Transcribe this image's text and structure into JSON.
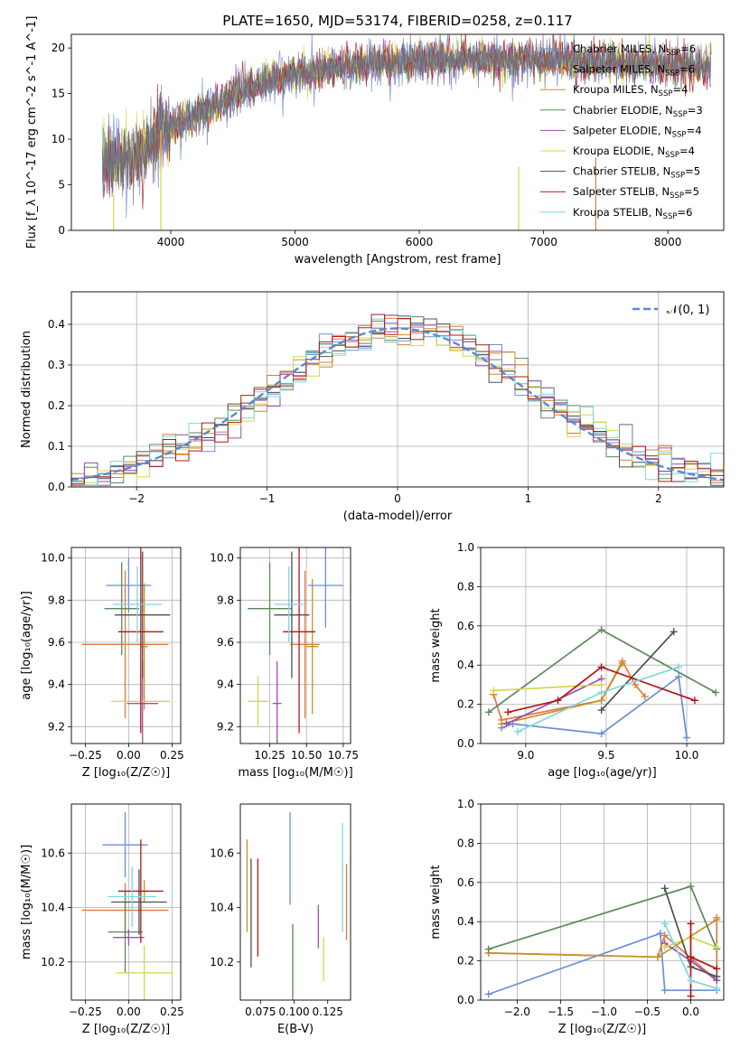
{
  "title": "PLATE=1650, MJD=53174, FIBERID=0258, z=0.117",
  "models": [
    {
      "label": "Chabrier MILES, N",
      "sub": "SSP",
      "suffix": "=6",
      "color": "#6a8fd6"
    },
    {
      "label": "Salpeter MILES, N",
      "sub": "SSP",
      "suffix": "=6",
      "color": "#e07a3f"
    },
    {
      "label": "Kroupa MILES, N",
      "sub": "SSP",
      "suffix": "=4",
      "color": "#c9902a"
    },
    {
      "label": "Chabrier ELODIE, N",
      "sub": "SSP",
      "suffix": "=3",
      "color": "#5a8a5a"
    },
    {
      "label": "Salpeter ELODIE, N",
      "sub": "SSP",
      "suffix": "=4",
      "color": "#9a4fb0"
    },
    {
      "label": "Kroupa ELODIE, N",
      "sub": "SSP",
      "suffix": "=4",
      "color": "#d4d84a"
    },
    {
      "label": "Chabrier STELIB, N",
      "sub": "SSP",
      "suffix": "=5",
      "color": "#505050"
    },
    {
      "label": "Salpeter STELIB, N",
      "sub": "SSP",
      "suffix": "=5",
      "color": "#b01818"
    },
    {
      "label": "Kroupa STELIB, N",
      "sub": "SSP",
      "suffix": "=6",
      "color": "#7fd6e0"
    }
  ],
  "chart_data": [
    {
      "id": "spectrum",
      "type": "line",
      "xlabel": "wavelength [Angstrom, rest frame]",
      "ylabel": "Flux [f_λ 10^-17 erg cm^-2 s^-1 A^-1]",
      "xlim": [
        3200,
        8450
      ],
      "ylim": [
        0,
        21.5
      ],
      "xticks": [
        4000,
        5000,
        6000,
        7000,
        8000
      ],
      "yticks": [
        0,
        5,
        10,
        15,
        20
      ],
      "grid": false,
      "legend": "right",
      "data_color": "#707070",
      "continuum": [
        [
          3450,
          7.5
        ],
        [
          3700,
          7.8
        ],
        [
          3950,
          11
        ],
        [
          4200,
          12.5
        ],
        [
          4600,
          15.5
        ],
        [
          5000,
          17.2
        ],
        [
          5500,
          18.2
        ],
        [
          6000,
          18.6
        ],
        [
          6500,
          18.8
        ],
        [
          7000,
          18.7
        ],
        [
          7400,
          18.5
        ],
        [
          8000,
          18.2
        ],
        [
          8350,
          18.0
        ]
      ]
    },
    {
      "id": "residuals",
      "type": "line",
      "xlabel": "(data-model)/error",
      "ylabel": "Normed distribution",
      "xlim": [
        -2.5,
        2.5
      ],
      "ylim": [
        0,
        0.48
      ],
      "xticks": [
        -2,
        -1,
        0,
        1,
        2
      ],
      "yticks": [
        0.0,
        0.1,
        0.2,
        0.3,
        0.4
      ],
      "grid": true,
      "legend": "top-right",
      "reference": {
        "name": "𝒩(0, 1)",
        "mu": 0,
        "sigma": 1,
        "peak": 0.39,
        "color": "#5b87d6"
      }
    },
    {
      "id": "age_vs_Z",
      "type": "scatter",
      "xlabel": "Z [log₁₀(Z/Z☉)]",
      "ylabel": "age  [log₁₀(age/yr)]",
      "xlim": [
        -0.33,
        0.3
      ],
      "ylim": [
        9.12,
        10.05
      ],
      "xticks": [
        -0.25,
        0.0,
        0.25
      ],
      "yticks": [
        9.2,
        9.4,
        9.6,
        9.8,
        10.0
      ],
      "grid": true,
      "points": [
        {
          "x": 0.0,
          "xerr": 0.13,
          "y": 9.87,
          "yerr": 0.13
        },
        {
          "x": -0.02,
          "xerr": 0.25,
          "y": 9.59,
          "yerr": 0.35
        },
        {
          "x": 0.09,
          "xerr": 0.02,
          "y": 9.58,
          "yerr": 0.3
        },
        {
          "x": -0.04,
          "xerr": 0.1,
          "y": 9.76,
          "yerr": 0.22
        },
        {
          "x": 0.08,
          "xerr": 0.09,
          "y": 9.31,
          "yerr": 0.2
        },
        {
          "x": 0.07,
          "xerr": 0.17,
          "y": 9.32,
          "yerr": 0.15
        },
        {
          "x": 0.08,
          "xerr": 0.16,
          "y": 9.73,
          "yerr": 0.3
        },
        {
          "x": 0.07,
          "xerr": 0.13,
          "y": 9.65,
          "yerr": 0.48
        },
        {
          "x": 0.05,
          "xerr": 0.14,
          "y": 9.78,
          "yerr": 0.18
        }
      ]
    },
    {
      "id": "age_vs_mass",
      "type": "scatter",
      "xlabel": "mass [log₁₀(M/M☉)]",
      "ylabel": "",
      "xlim": [
        10.05,
        10.8
      ],
      "ylim": [
        9.12,
        10.05
      ],
      "xticks": [
        10.25,
        10.5,
        10.75
      ],
      "yticks": [
        9.2,
        9.4,
        9.6,
        9.8,
        10.0
      ],
      "grid": true,
      "points": [
        {
          "x": 10.63,
          "xerr": 0.12,
          "y": 9.87,
          "yerr": 0.2
        },
        {
          "x": 10.49,
          "xerr": 0.1,
          "y": 9.59,
          "yerr": 0.35
        },
        {
          "x": 10.54,
          "xerr": 0.04,
          "y": 9.58,
          "yerr": 0.32
        },
        {
          "x": 10.25,
          "xerr": 0.15,
          "y": 9.76,
          "yerr": 0.22
        },
        {
          "x": 10.3,
          "xerr": 0.03,
          "y": 9.31,
          "yerr": 0.2
        },
        {
          "x": 10.17,
          "xerr": 0.07,
          "y": 9.32,
          "yerr": 0.12
        },
        {
          "x": 10.4,
          "xerr": 0.12,
          "y": 9.73,
          "yerr": 0.3
        },
        {
          "x": 10.45,
          "xerr": 0.11,
          "y": 9.65,
          "yerr": 0.48
        },
        {
          "x": 10.38,
          "xerr": 0.1,
          "y": 9.78,
          "yerr": 0.18
        }
      ]
    },
    {
      "id": "weight_vs_age",
      "type": "line",
      "xlabel": "age  [log₁₀(age/yr)]",
      "ylabel": "mass weight",
      "xlim": [
        8.72,
        10.23
      ],
      "ylim": [
        0,
        1.0
      ],
      "xticks": [
        9.0,
        9.5,
        10.0
      ],
      "yticks": [
        0.0,
        0.2,
        0.4,
        0.6,
        0.8,
        1.0
      ],
      "grid": true,
      "series": [
        [
          [
            8.85,
            0.08
          ],
          [
            8.92,
            0.1
          ],
          [
            9.47,
            0.05
          ],
          [
            9.95,
            0.34
          ],
          [
            10.0,
            0.03
          ]
        ],
        [
          [
            8.8,
            0.25
          ],
          [
            8.85,
            0.12
          ],
          [
            9.47,
            0.22
          ],
          [
            9.6,
            0.42
          ],
          [
            9.68,
            0.3
          ],
          [
            9.74,
            0.24
          ]
        ],
        [
          [
            8.85,
            0.1
          ],
          [
            9.47,
            0.22
          ],
          [
            9.6,
            0.41
          ]
        ],
        [
          [
            8.77,
            0.16
          ],
          [
            9.47,
            0.58
          ],
          [
            10.18,
            0.26
          ]
        ],
        [
          [
            8.88,
            0.1
          ],
          [
            9.47,
            0.33
          ]
        ],
        [
          [
            8.8,
            0.27
          ],
          [
            9.47,
            0.3
          ]
        ],
        [
          [
            9.47,
            0.17
          ],
          [
            9.92,
            0.57
          ]
        ],
        [
          [
            8.89,
            0.16
          ],
          [
            9.2,
            0.22
          ],
          [
            9.47,
            0.39
          ],
          [
            10.05,
            0.22
          ]
        ],
        [
          [
            8.95,
            0.06
          ],
          [
            9.47,
            0.26
          ],
          [
            9.95,
            0.39
          ]
        ]
      ]
    },
    {
      "id": "mass_vs_Z",
      "type": "scatter",
      "xlabel": "Z [log₁₀(Z/Z☉)]",
      "ylabel": "mass [log₁₀(M/M☉)]",
      "xlim": [
        -0.33,
        0.3
      ],
      "ylim": [
        10.06,
        10.78
      ],
      "xticks": [
        -0.25,
        0.0,
        0.25
      ],
      "yticks": [
        10.2,
        10.4,
        10.6
      ],
      "grid": true,
      "points": [
        {
          "x": -0.02,
          "xerr": 0.13,
          "y": 10.63,
          "yerr": 0.12
        },
        {
          "x": -0.02,
          "xerr": 0.25,
          "y": 10.39,
          "yerr": 0.1
        },
        {
          "x": 0.09,
          "xerr": 0.02,
          "y": 10.46,
          "yerr": 0.04
        },
        {
          "x": -0.02,
          "xerr": 0.1,
          "y": 10.31,
          "yerr": 0.15
        },
        {
          "x": 0.0,
          "xerr": 0.09,
          "y": 10.29,
          "yerr": 0.03
        },
        {
          "x": 0.09,
          "xerr": 0.16,
          "y": 10.16,
          "yerr": 0.1
        },
        {
          "x": 0.06,
          "xerr": 0.16,
          "y": 10.42,
          "yerr": 0.12
        },
        {
          "x": 0.07,
          "xerr": 0.13,
          "y": 10.46,
          "yerr": 0.19
        },
        {
          "x": 0.02,
          "xerr": 0.14,
          "y": 10.44,
          "yerr": 0.11
        }
      ]
    },
    {
      "id": "mass_vs_ebv",
      "type": "scatter",
      "xlabel": "E(B-V)",
      "ylabel": "",
      "xlim": [
        0.06,
        0.142
      ],
      "ylim": [
        10.06,
        10.78
      ],
      "xticks": [
        0.075,
        0.1,
        0.125
      ],
      "yticks": [
        10.2,
        10.4,
        10.6
      ],
      "grid": false,
      "points": [
        {
          "x": 0.097,
          "y": 10.58,
          "yerr": 0.17
        },
        {
          "x": 0.139,
          "y": 10.42,
          "yerr": 0.14
        },
        {
          "x": 0.065,
          "y": 10.48,
          "yerr": 0.17
        },
        {
          "x": 0.099,
          "y": 10.2,
          "yerr": 0.14
        },
        {
          "x": 0.118,
          "y": 10.33,
          "yerr": 0.08
        },
        {
          "x": 0.122,
          "y": 10.21,
          "yerr": 0.08
        },
        {
          "x": 0.068,
          "y": 10.38,
          "yerr": 0.2
        },
        {
          "x": 0.073,
          "y": 10.4,
          "yerr": 0.18
        },
        {
          "x": 0.136,
          "y": 10.51,
          "yerr": 0.2
        }
      ]
    },
    {
      "id": "weight_vs_Z",
      "type": "line",
      "xlabel": "Z [log₁₀(Z/Z☉)]",
      "ylabel": "mass weight",
      "xlim": [
        -2.42,
        0.38
      ],
      "ylim": [
        0,
        1.0
      ],
      "xticks": [
        -2.0,
        -1.5,
        -1.0,
        -0.5,
        0.0
      ],
      "yticks": [
        0.0,
        0.2,
        0.4,
        0.6,
        0.8,
        1.0
      ],
      "grid": true,
      "series": [
        [
          [
            -2.33,
            0.03
          ],
          [
            -0.35,
            0.34
          ],
          [
            -0.3,
            0.05
          ],
          [
            0.3,
            0.05
          ]
        ],
        [
          [
            -2.33,
            0.24
          ],
          [
            -0.38,
            0.22
          ],
          [
            -0.3,
            0.33
          ],
          [
            0.3,
            0.1
          ],
          [
            0.3,
            0.42
          ]
        ],
        [
          [
            -2.33,
            0.24
          ],
          [
            -0.38,
            0.22
          ],
          [
            0.3,
            0.41
          ]
        ],
        [
          [
            -2.33,
            0.26
          ],
          [
            0.0,
            0.58
          ],
          [
            0.3,
            0.26
          ]
        ],
        [
          [
            -0.3,
            0.29
          ],
          [
            0.0,
            0.2
          ],
          [
            0.3,
            0.1
          ]
        ],
        [
          [
            -0.3,
            0.27
          ],
          [
            0.0,
            0.32
          ],
          [
            0.3,
            0.27
          ]
        ],
        [
          [
            -0.3,
            0.57
          ],
          [
            0.0,
            0.17
          ],
          [
            0.3,
            0.12
          ]
        ],
        [
          [
            0.0,
            0.39
          ],
          [
            0.0,
            0.02
          ],
          [
            0.0,
            0.22
          ],
          [
            0.3,
            0.16
          ]
        ],
        [
          [
            -0.3,
            0.39
          ],
          [
            0.0,
            0.1
          ],
          [
            0.3,
            0.06
          ]
        ]
      ]
    }
  ]
}
